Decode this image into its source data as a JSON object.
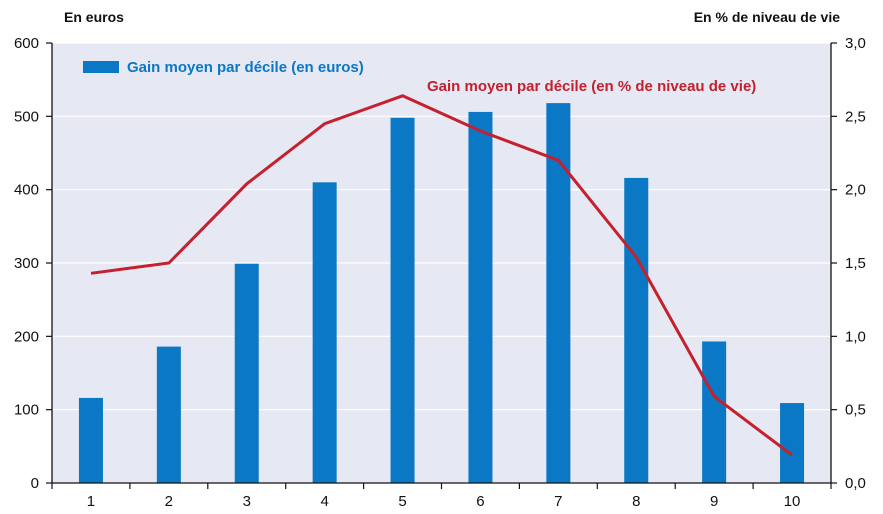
{
  "chart_data": {
    "type": "bar",
    "left_axis_unit": "En euros",
    "right_axis_unit": "En % de niveau de vie",
    "categories": [
      "1",
      "2",
      "3",
      "4",
      "5",
      "6",
      "7",
      "8",
      "9",
      "10"
    ],
    "series": [
      {
        "name": "Gain moyen par décile (en euros)",
        "type": "bar",
        "axis": "left",
        "color": "#0a78c4",
        "values": [
          116,
          186,
          299,
          410,
          498,
          506,
          518,
          416,
          193,
          109
        ]
      },
      {
        "name": "Gain moyen par décile (en % de niveau de vie)",
        "type": "line",
        "axis": "right",
        "color": "#c4202d",
        "values": [
          1.43,
          1.5,
          2.04,
          2.45,
          2.64,
          2.4,
          2.2,
          1.54,
          0.59,
          0.19
        ]
      }
    ],
    "ylim_left": [
      0,
      600
    ],
    "ylim_right": [
      0,
      3.0
    ],
    "left_ticks": [
      "0",
      "100",
      "200",
      "300",
      "400",
      "500",
      "600"
    ],
    "right_ticks": [
      "0,0",
      "0,5",
      "1,0",
      "1,5",
      "2,0",
      "2,5",
      "3,0"
    ],
    "grid": "horizontal",
    "plot_background": "#e6e8f3"
  }
}
